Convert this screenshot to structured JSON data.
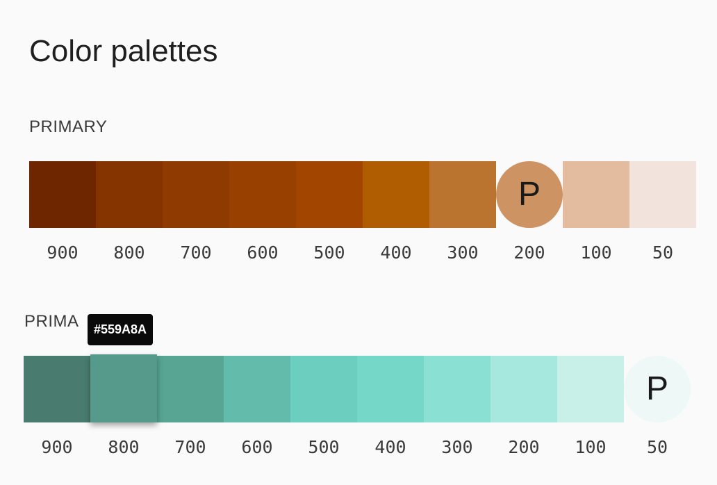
{
  "page": {
    "title": "Color palettes"
  },
  "palettes": [
    {
      "label": "PRIMARY",
      "selected_mark": "P",
      "selected_shade": "200",
      "swatches": [
        {
          "shade": "900",
          "color": "#6d2600"
        },
        {
          "shade": "800",
          "color": "#853400"
        },
        {
          "shade": "700",
          "color": "#8e3a00"
        },
        {
          "shade": "600",
          "color": "#974000"
        },
        {
          "shade": "500",
          "color": "#a14500"
        },
        {
          "shade": "400",
          "color": "#b05c00"
        },
        {
          "shade": "300",
          "color": "#bb7330"
        },
        {
          "shade": "200",
          "color": "#cd9363"
        },
        {
          "shade": "100",
          "color": "#e3bc9f"
        },
        {
          "shade": "50",
          "color": "#f3e3dd"
        }
      ]
    },
    {
      "label": "PRIMA",
      "selected_mark": "P",
      "selected_shade": "50",
      "hovered_shade": "800",
      "tooltip": "#559A8A",
      "swatches": [
        {
          "shade": "900",
          "color": "#497c6e"
        },
        {
          "shade": "800",
          "color": "#559a8a"
        },
        {
          "shade": "700",
          "color": "#57a592"
        },
        {
          "shade": "600",
          "color": "#63bbac"
        },
        {
          "shade": "500",
          "color": "#6ccebe"
        },
        {
          "shade": "400",
          "color": "#75d7c7"
        },
        {
          "shade": "300",
          "color": "#8ae0d3"
        },
        {
          "shade": "200",
          "color": "#a6e8de"
        },
        {
          "shade": "100",
          "color": "#c9f0e8"
        },
        {
          "shade": "50",
          "color": "#eef8f6"
        }
      ]
    }
  ]
}
